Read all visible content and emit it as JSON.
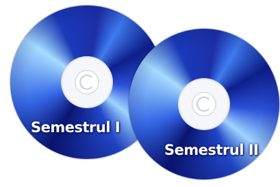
{
  "discs": [
    {
      "label": "Semestrul I"
    },
    {
      "label": "Semestrul II"
    }
  ]
}
